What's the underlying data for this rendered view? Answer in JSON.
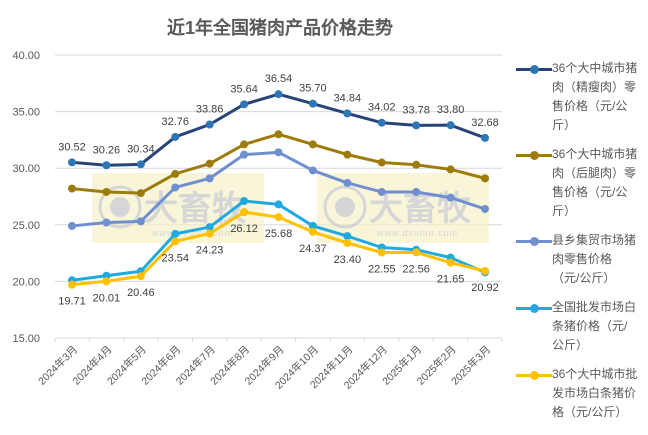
{
  "chart_data": {
    "type": "line",
    "title": "近1年全国猪肉产品价格走势",
    "xlabel": "",
    "ylabel": "",
    "ylim": [
      15,
      40
    ],
    "yticks": [
      "15.00",
      "20.00",
      "25.00",
      "30.00",
      "35.00",
      "40.00"
    ],
    "grid": true,
    "legend_position": "right",
    "categories": [
      "2024年3月",
      "2024年4月",
      "2024年5月",
      "2024年6月",
      "2024年7月",
      "2024年8月",
      "2024年9月",
      "2024年10月",
      "2024年11月",
      "2024年12月",
      "2025年1月",
      "2025年2月",
      "2025年3月"
    ],
    "series": [
      {
        "name": "36个大中城市猪肉（精瘦肉）零售价格（元/公斤）",
        "color": "#264478",
        "marker": "#2E75B6",
        "labels": true,
        "values": [
          30.52,
          30.26,
          30.34,
          32.76,
          33.86,
          35.64,
          36.54,
          35.7,
          34.84,
          34.02,
          33.78,
          33.8,
          32.68
        ]
      },
      {
        "name": "36个大中城市猪肉（后腿肉）零售价格（元/公斤）",
        "color": "#9E7C0C",
        "marker": "#9E7C0C",
        "labels": false,
        "values": [
          28.2,
          27.9,
          27.8,
          29.5,
          30.4,
          32.1,
          33.0,
          32.1,
          31.2,
          30.5,
          30.3,
          29.9,
          29.1
        ]
      },
      {
        "name": "县乡集贸市场猪肉零售价格（元/公斤）",
        "color": "#6F8FCF",
        "marker": "#6F8FCF",
        "labels": false,
        "values": [
          24.9,
          25.2,
          25.3,
          28.3,
          29.1,
          31.2,
          31.4,
          29.8,
          28.7,
          27.9,
          27.9,
          27.4,
          26.4
        ]
      },
      {
        "name": "全国批发市场白条猪价格（元/公斤）",
        "color": "#1FA9E1",
        "marker": "#1FA9E1",
        "labels": false,
        "values": [
          20.1,
          20.5,
          20.9,
          24.2,
          24.8,
          27.1,
          26.8,
          24.9,
          24.0,
          23.0,
          22.8,
          22.1,
          20.8
        ]
      },
      {
        "name": "36个大中城市批发市场白条猪价格（元/公斤）",
        "color": "#FFC000",
        "marker": "#FFC000",
        "labels": true,
        "values": [
          19.71,
          20.01,
          20.46,
          23.54,
          24.23,
          26.12,
          25.68,
          24.37,
          23.4,
          22.55,
          22.56,
          21.65,
          20.92
        ]
      }
    ]
  },
  "watermark": {
    "text": "大畜牧",
    "url_text": "www.dxumu.com"
  }
}
